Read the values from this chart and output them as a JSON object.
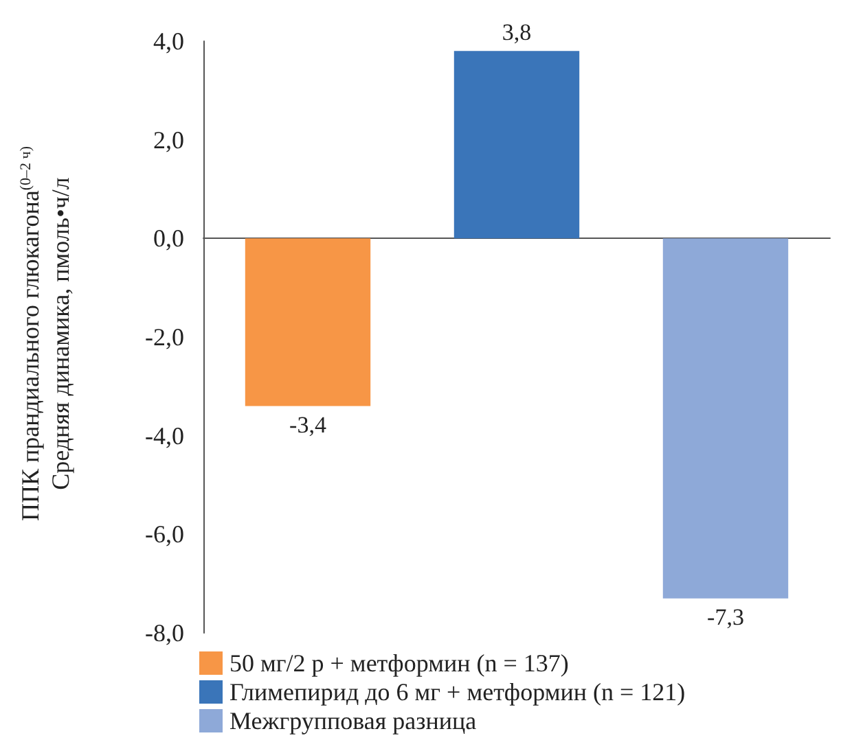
{
  "chart_data": {
    "type": "bar",
    "ylabel": "ППК прандиального глюкагона$^{(0–2 ч)}$\nСредняя динамика, пмоль•ч/л",
    "categories": [
      null,
      null,
      null
    ],
    "series": [
      {
        "name": "50 мг/2 р + метформин (n = 137)",
        "color": "#f79646",
        "values": [
          -3.4,
          null,
          null
        ],
        "value_labels": [
          "-3,4",
          null,
          null
        ]
      },
      {
        "name": "Глимепирид до 6 мг + метформин (n = 121)",
        "color": "#3a75b9",
        "values": [
          null,
          3.8,
          null
        ],
        "value_labels": [
          null,
          "3,8",
          null
        ]
      },
      {
        "name": "Межгрупповая разница",
        "color": "#8ea9d8",
        "values": [
          null,
          null,
          -7.3
        ],
        "value_labels": [
          null,
          null,
          "-7,3"
        ]
      }
    ],
    "ylim": [
      -8,
      4
    ],
    "yticks": [
      {
        "value": -8,
        "label": "-8,0"
      },
      {
        "value": -6,
        "label": "-6,0"
      },
      {
        "value": -4,
        "label": "-4,0"
      },
      {
        "value": -2,
        "label": "-2,0"
      },
      {
        "value": 0,
        "label": "0,0"
      },
      {
        "value": 2,
        "label": "2,0"
      },
      {
        "value": 4,
        "label": "4,0"
      }
    ],
    "legend": "bottom"
  }
}
